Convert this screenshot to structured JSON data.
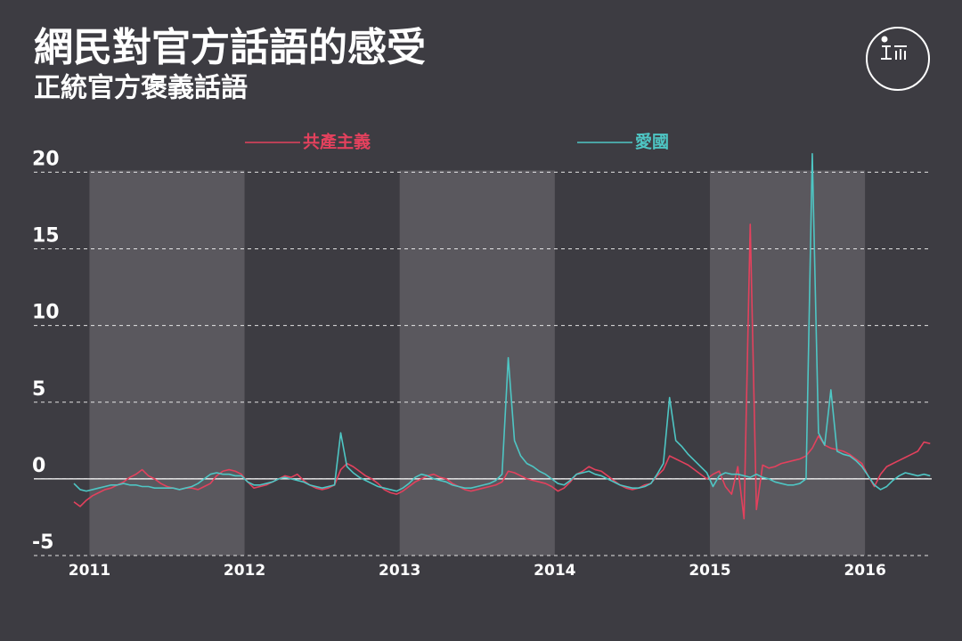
{
  "chart_data": {
    "type": "line",
    "title": "網民對官方話語的感受",
    "subtitle": "正統官方褒義話語",
    "legend": "top",
    "grid": true,
    "xlim": [
      2010.9,
      2016.43
    ],
    "xticks": [
      2011,
      2012,
      2013,
      2014,
      2015,
      2016
    ],
    "ylim": [
      -5,
      21.3
    ],
    "yticks": [
      -5,
      0,
      5,
      10,
      15,
      20
    ],
    "x": [
      2010.9,
      2010.94,
      2010.98,
      2011.02,
      2011.06,
      2011.1,
      2011.14,
      2011.18,
      2011.22,
      2011.26,
      2011.3,
      2011.34,
      2011.38,
      2011.42,
      2011.46,
      2011.5,
      2011.54,
      2011.58,
      2011.62,
      2011.66,
      2011.7,
      2011.74,
      2011.78,
      2011.82,
      2011.86,
      2011.9,
      2011.94,
      2011.98,
      2012.02,
      2012.06,
      2012.1,
      2012.14,
      2012.18,
      2012.22,
      2012.26,
      2012.3,
      2012.34,
      2012.38,
      2012.42,
      2012.46,
      2012.5,
      2012.54,
      2012.58,
      2012.62,
      2012.66,
      2012.7,
      2012.74,
      2012.78,
      2012.82,
      2012.86,
      2012.9,
      2012.94,
      2012.98,
      2013.02,
      2013.06,
      2013.1,
      2013.14,
      2013.18,
      2013.22,
      2013.26,
      2013.3,
      2013.34,
      2013.38,
      2013.42,
      2013.46,
      2013.5,
      2013.54,
      2013.58,
      2013.62,
      2013.66,
      2013.7,
      2013.74,
      2013.78,
      2013.82,
      2013.86,
      2013.9,
      2013.94,
      2013.98,
      2014.02,
      2014.06,
      2014.1,
      2014.14,
      2014.18,
      2014.22,
      2014.26,
      2014.3,
      2014.34,
      2014.38,
      2014.42,
      2014.46,
      2014.5,
      2014.54,
      2014.58,
      2014.62,
      2014.66,
      2014.7,
      2014.74,
      2014.78,
      2014.82,
      2014.86,
      2014.9,
      2014.94,
      2014.98,
      2015.02,
      2015.06,
      2015.1,
      2015.14,
      2015.18,
      2015.22,
      2015.26,
      2015.3,
      2015.34,
      2015.38,
      2015.42,
      2015.46,
      2015.5,
      2015.54,
      2015.58,
      2015.62,
      2015.66,
      2015.7,
      2015.74,
      2015.78,
      2015.82,
      2015.86,
      2015.9,
      2015.94,
      2015.98,
      2016.02,
      2016.06,
      2016.1,
      2016.14,
      2016.18,
      2016.22,
      2016.26,
      2016.3,
      2016.34,
      2016.38,
      2016.42
    ],
    "series": [
      {
        "name": "共產主義",
        "color": "#e3415d",
        "values": [
          -1.5,
          -1.8,
          -1.4,
          -1.1,
          -0.9,
          -0.7,
          -0.6,
          -0.4,
          -0.2,
          0.1,
          0.3,
          0.6,
          0.2,
          0.0,
          -0.3,
          -0.5,
          -0.6,
          -0.7,
          -0.6,
          -0.6,
          -0.7,
          -0.5,
          -0.3,
          0.2,
          0.5,
          0.6,
          0.5,
          0.3,
          -0.2,
          -0.6,
          -0.5,
          -0.4,
          -0.2,
          0.0,
          0.2,
          0.1,
          0.3,
          -0.1,
          -0.4,
          -0.6,
          -0.7,
          -0.6,
          -0.4,
          0.6,
          1.0,
          0.8,
          0.5,
          0.2,
          0.0,
          -0.3,
          -0.7,
          -0.9,
          -1.0,
          -0.8,
          -0.5,
          -0.2,
          0.0,
          0.2,
          0.3,
          0.1,
          0.0,
          -0.3,
          -0.5,
          -0.7,
          -0.8,
          -0.7,
          -0.6,
          -0.5,
          -0.4,
          -0.2,
          0.5,
          0.4,
          0.2,
          0.0,
          -0.1,
          -0.2,
          -0.3,
          -0.5,
          -0.8,
          -0.6,
          -0.2,
          0.3,
          0.5,
          0.8,
          0.6,
          0.5,
          0.2,
          -0.1,
          -0.4,
          -0.6,
          -0.7,
          -0.6,
          -0.4,
          -0.3,
          0.2,
          0.6,
          1.5,
          1.3,
          1.1,
          0.9,
          0.6,
          0.3,
          0.0,
          0.3,
          0.5,
          -0.5,
          -1.0,
          0.8,
          -2.6,
          16.6,
          -2.0,
          0.9,
          0.7,
          0.8,
          1.0,
          1.1,
          1.2,
          1.3,
          1.5,
          2.0,
          2.8,
          2.2,
          2.0,
          1.9,
          1.8,
          1.6,
          1.3,
          1.0,
          0.2,
          -0.5,
          0.3,
          0.8,
          1.0,
          1.2,
          1.4,
          1.6,
          1.8,
          2.4,
          2.3
        ]
      },
      {
        "name": "愛國",
        "color": "#4ec6c4",
        "values": [
          -0.3,
          -0.7,
          -0.8,
          -0.7,
          -0.6,
          -0.5,
          -0.4,
          -0.4,
          -0.3,
          -0.4,
          -0.4,
          -0.5,
          -0.5,
          -0.6,
          -0.6,
          -0.6,
          -0.6,
          -0.7,
          -0.6,
          -0.5,
          -0.3,
          0.0,
          0.3,
          0.4,
          0.3,
          0.3,
          0.2,
          0.2,
          -0.2,
          -0.4,
          -0.4,
          -0.3,
          -0.2,
          0.0,
          0.1,
          0.0,
          -0.1,
          -0.2,
          -0.4,
          -0.5,
          -0.6,
          -0.5,
          -0.4,
          3.0,
          0.8,
          0.4,
          0.1,
          -0.1,
          -0.3,
          -0.5,
          -0.6,
          -0.7,
          -0.8,
          -0.6,
          -0.3,
          0.1,
          0.3,
          0.2,
          0.0,
          -0.1,
          -0.2,
          -0.4,
          -0.5,
          -0.6,
          -0.6,
          -0.5,
          -0.4,
          -0.3,
          -0.1,
          0.3,
          7.9,
          2.5,
          1.5,
          1.0,
          0.8,
          0.5,
          0.3,
          0.0,
          -0.3,
          -0.4,
          -0.1,
          0.3,
          0.4,
          0.5,
          0.3,
          0.2,
          0.0,
          -0.2,
          -0.4,
          -0.5,
          -0.6,
          -0.6,
          -0.5,
          -0.3,
          0.3,
          1.0,
          5.3,
          2.5,
          2.1,
          1.6,
          1.2,
          0.8,
          0.4,
          -0.5,
          0.2,
          0.4,
          0.3,
          0.3,
          0.2,
          0.1,
          0.3,
          0.1,
          0.0,
          -0.2,
          -0.3,
          -0.4,
          -0.4,
          -0.3,
          0.0,
          21.2,
          3.0,
          2.2,
          5.8,
          1.8,
          1.6,
          1.5,
          1.2,
          0.8,
          0.2,
          -0.4,
          -0.7,
          -0.5,
          -0.1,
          0.2,
          0.4,
          0.3,
          0.2,
          0.3,
          0.2
        ]
      }
    ]
  }
}
